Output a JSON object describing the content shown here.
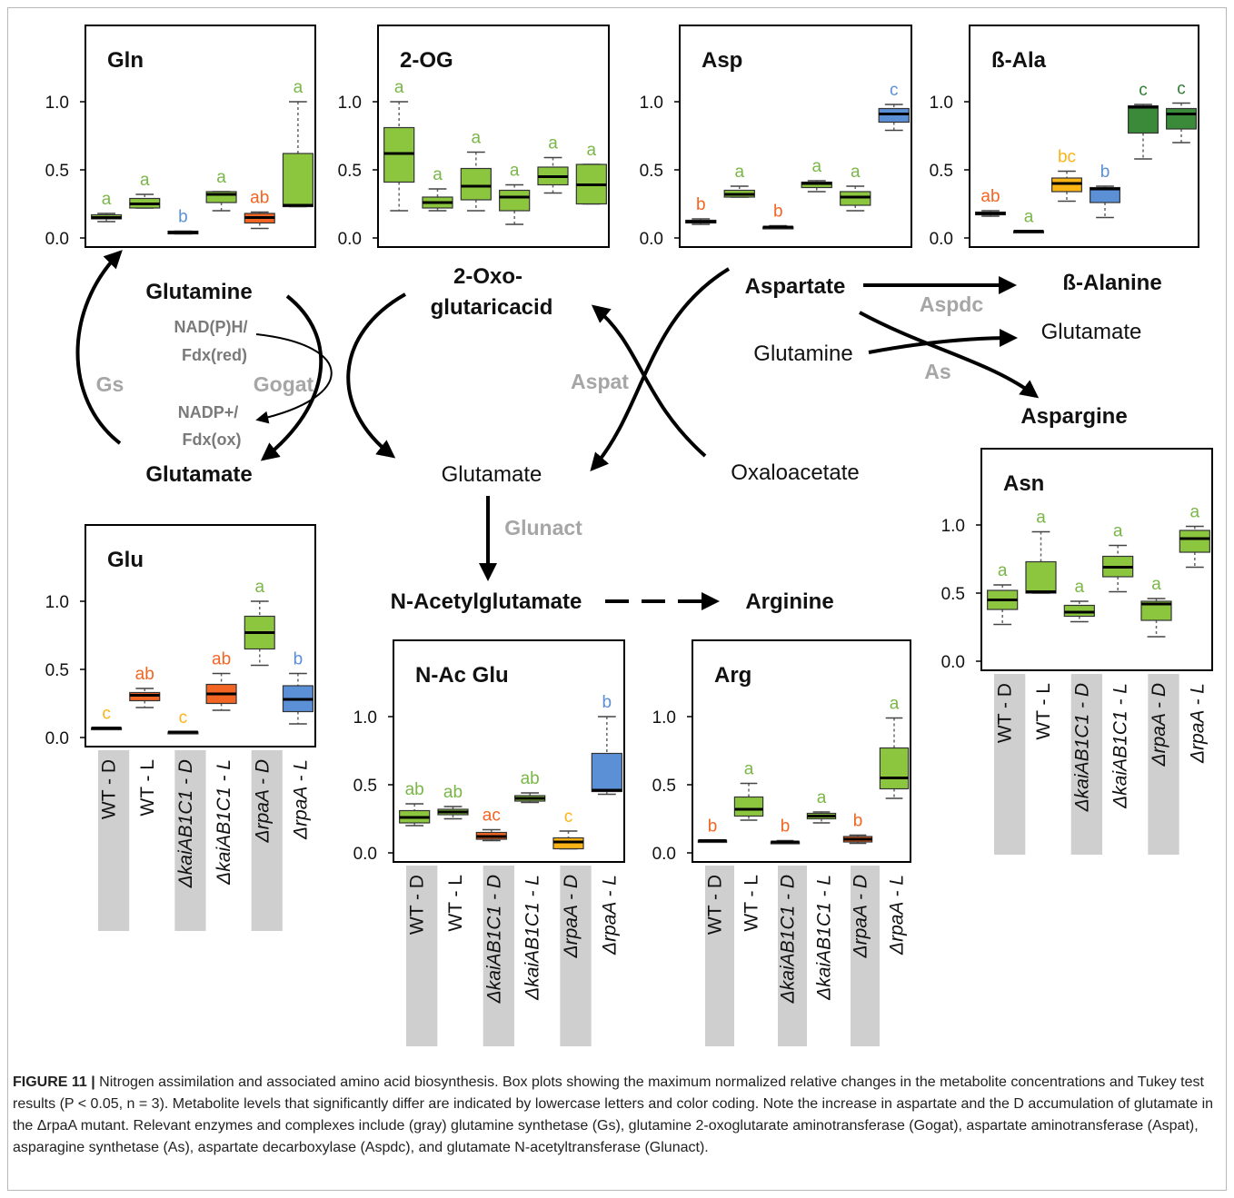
{
  "colors": {
    "green": "#8cc63f",
    "dark_green": "#3a8a3a",
    "orange": "#f26522",
    "yellow": "#fbb416",
    "blue": "#5b8fd6",
    "label_green": "#7ab648",
    "label_orange": "#f26522",
    "label_yellow": "#fbb416",
    "label_blue": "#5b8fd6",
    "label_dark_green": "#2e7d32",
    "enzyme_gray": "#a6a6a6",
    "cofactor_gray": "#7a7a7a",
    "shade": "#cfcfcf"
  },
  "categories": [
    "WT - D",
    "WT - L",
    "ΔkaiAB1C1 - D",
    "ΔkaiAB1C1 - L",
    "ΔrpaA - D",
    "ΔrpaA - L"
  ],
  "categories_italic": [
    false,
    false,
    true,
    true,
    true,
    true
  ],
  "tick_labels": [
    "0.0",
    "0.5",
    "1.0"
  ],
  "pathway": {
    "glutamine_left": "Glutamine",
    "glutamate_left": "Glutamate",
    "oxo_line1": "2-Oxo-",
    "oxo_line2": "glutaricacid",
    "glutamate_center": "Glutamate",
    "aspartate": "Aspartate",
    "beta_alanine": "ß-Alanine",
    "glutamate_right": "Glutamate",
    "glutamine_right": "Glutamine",
    "aspargine": "Aspargine",
    "oxaloacetate": "Oxaloacetate",
    "n_acetylglutamate": "N-Acetylglutamate",
    "arginine": "Arginine",
    "enzyme_gs": "Gs",
    "enzyme_gogat": "Gogat",
    "enzyme_aspat": "Aspat",
    "enzyme_aspdc": "Aspdc",
    "enzyme_as": "As",
    "enzyme_glunact": "Glunact",
    "cofactor_nadph": "NAD(P)H/",
    "cofactor_fdxred": "Fdx(red)",
    "cofactor_nadp": "NADP+/",
    "cofactor_fdxox": "Fdx(ox)"
  },
  "caption": {
    "label": "FIGURE 11 |",
    "text": " Nitrogen assimilation and associated amino acid biosynthesis. Box plots showing the maximum normalized relative changes in the metabolite concentrations and Tukey test results (P < 0.05, n = 3). Metabolite levels that significantly differ are indicated by lowercase letters and color coding. Note the increase in aspartate and the D accumulation of glutamate in the ΔrpaA mutant. Relevant enzymes and complexes include (gray) glutamine synthetase (Gs), glutamine 2-oxoglutarate aminotransferase (Gogat), aspartate aminotransferase (Aspat), asparagine synthetase (As), aspartate decarboxylase (Aspdc), and glutamate N-acetyltransferase (Glunact)."
  },
  "chart_data": [
    {
      "type": "box",
      "title": "Gln",
      "ylim": [
        0,
        1.3
      ],
      "boxes": [
        {
          "min": 0.12,
          "q1": 0.14,
          "median": 0.15,
          "q3": 0.17,
          "max": 0.18,
          "fill": "green",
          "letter": "a",
          "letter_color": "label_green"
        },
        {
          "min": 0.22,
          "q1": 0.22,
          "median": 0.25,
          "q3": 0.29,
          "max": 0.32,
          "fill": "green",
          "letter": "a",
          "letter_color": "label_green"
        },
        {
          "min": 0.03,
          "q1": 0.03,
          "median": 0.04,
          "q3": 0.05,
          "max": 0.05,
          "fill": "green",
          "letter": "b",
          "letter_color": "label_blue"
        },
        {
          "min": 0.2,
          "q1": 0.26,
          "median": 0.32,
          "q3": 0.34,
          "max": 0.34,
          "fill": "green",
          "letter": "a",
          "letter_color": "label_green"
        },
        {
          "min": 0.07,
          "q1": 0.11,
          "median": 0.15,
          "q3": 0.18,
          "max": 0.19,
          "fill": "orange",
          "letter": "ab",
          "letter_color": "label_orange"
        },
        {
          "min": 0.23,
          "q1": 0.23,
          "median": 0.24,
          "q3": 0.62,
          "max": 1.0,
          "fill": "green",
          "letter": "a",
          "letter_color": "label_green"
        }
      ]
    },
    {
      "type": "box",
      "title": "2-OG",
      "ylim": [
        0,
        1.3
      ],
      "boxes": [
        {
          "min": 0.2,
          "q1": 0.41,
          "median": 0.62,
          "q3": 0.81,
          "max": 1.0,
          "fill": "green",
          "letter": "a",
          "letter_color": "label_green"
        },
        {
          "min": 0.2,
          "q1": 0.22,
          "median": 0.26,
          "q3": 0.3,
          "max": 0.36,
          "fill": "green",
          "letter": "a",
          "letter_color": "label_green"
        },
        {
          "min": 0.2,
          "q1": 0.28,
          "median": 0.38,
          "q3": 0.51,
          "max": 0.63,
          "fill": "green",
          "letter": "a",
          "letter_color": "label_green"
        },
        {
          "min": 0.1,
          "q1": 0.2,
          "median": 0.3,
          "q3": 0.35,
          "max": 0.39,
          "fill": "green",
          "letter": "a",
          "letter_color": "label_green"
        },
        {
          "min": 0.33,
          "q1": 0.39,
          "median": 0.45,
          "q3": 0.52,
          "max": 0.59,
          "fill": "green",
          "letter": "a",
          "letter_color": "label_green"
        },
        {
          "min": 0.25,
          "q1": 0.25,
          "median": 0.39,
          "q3": 0.54,
          "max": 0.54,
          "fill": "green",
          "letter": "a",
          "letter_color": "label_green"
        }
      ]
    },
    {
      "type": "box",
      "title": "Asp",
      "ylim": [
        0,
        1.3
      ],
      "boxes": [
        {
          "min": 0.1,
          "q1": 0.11,
          "median": 0.12,
          "q3": 0.13,
          "max": 0.14,
          "fill": "orange",
          "letter": "b",
          "letter_color": "label_orange"
        },
        {
          "min": 0.3,
          "q1": 0.3,
          "median": 0.32,
          "q3": 0.35,
          "max": 0.38,
          "fill": "green",
          "letter": "a",
          "letter_color": "label_green"
        },
        {
          "min": 0.07,
          "q1": 0.07,
          "median": 0.08,
          "q3": 0.08,
          "max": 0.09,
          "fill": "orange",
          "letter": "b",
          "letter_color": "label_orange"
        },
        {
          "min": 0.34,
          "q1": 0.37,
          "median": 0.4,
          "q3": 0.41,
          "max": 0.42,
          "fill": "green",
          "letter": "a",
          "letter_color": "label_green"
        },
        {
          "min": 0.2,
          "q1": 0.24,
          "median": 0.3,
          "q3": 0.34,
          "max": 0.38,
          "fill": "green",
          "letter": "a",
          "letter_color": "label_green"
        },
        {
          "min": 0.79,
          "q1": 0.85,
          "median": 0.91,
          "q3": 0.95,
          "max": 0.98,
          "fill": "blue",
          "letter": "c",
          "letter_color": "label_blue"
        }
      ]
    },
    {
      "type": "box",
      "title": "ß-Ala",
      "ylim": [
        0,
        1.3
      ],
      "boxes": [
        {
          "min": 0.16,
          "q1": 0.17,
          "median": 0.18,
          "q3": 0.19,
          "max": 0.2,
          "fill": "orange",
          "letter": "ab",
          "letter_color": "label_orange"
        },
        {
          "min": 0.05,
          "q1": 0.05,
          "median": 0.05,
          "q3": 0.05,
          "max": 0.05,
          "fill": "green",
          "letter": "a",
          "letter_color": "label_green"
        },
        {
          "min": 0.27,
          "q1": 0.34,
          "median": 0.4,
          "q3": 0.44,
          "max": 0.49,
          "fill": "yellow",
          "letter": "bc",
          "letter_color": "label_yellow"
        },
        {
          "min": 0.15,
          "q1": 0.26,
          "median": 0.36,
          "q3": 0.37,
          "max": 0.38,
          "fill": "blue",
          "letter": "b",
          "letter_color": "label_blue"
        },
        {
          "min": 0.58,
          "q1": 0.77,
          "median": 0.96,
          "q3": 0.97,
          "max": 0.98,
          "fill": "dark_green",
          "letter": "c",
          "letter_color": "label_dark_green"
        },
        {
          "min": 0.7,
          "q1": 0.8,
          "median": 0.91,
          "q3": 0.95,
          "max": 0.99,
          "fill": "dark_green",
          "letter": "c",
          "letter_color": "label_dark_green"
        }
      ]
    },
    {
      "type": "box",
      "title": "Glu",
      "ylim": [
        0,
        1.3
      ],
      "boxes": [
        {
          "min": 0.07,
          "q1": 0.07,
          "median": 0.07,
          "q3": 0.07,
          "max": 0.07,
          "fill": "yellow",
          "letter": "c",
          "letter_color": "label_yellow"
        },
        {
          "min": 0.22,
          "q1": 0.27,
          "median": 0.31,
          "q3": 0.33,
          "max": 0.36,
          "fill": "orange",
          "letter": "ab",
          "letter_color": "label_orange"
        },
        {
          "min": 0.04,
          "q1": 0.04,
          "median": 0.04,
          "q3": 0.04,
          "max": 0.04,
          "fill": "yellow",
          "letter": "c",
          "letter_color": "label_yellow"
        },
        {
          "min": 0.2,
          "q1": 0.25,
          "median": 0.32,
          "q3": 0.39,
          "max": 0.47,
          "fill": "orange",
          "letter": "ab",
          "letter_color": "label_orange"
        },
        {
          "min": 0.53,
          "q1": 0.65,
          "median": 0.77,
          "q3": 0.89,
          "max": 1.0,
          "fill": "green",
          "letter": "a",
          "letter_color": "label_green"
        },
        {
          "min": 0.1,
          "q1": 0.19,
          "median": 0.28,
          "q3": 0.38,
          "max": 0.47,
          "fill": "blue",
          "letter": "b",
          "letter_color": "label_blue"
        }
      ]
    },
    {
      "type": "box",
      "title": "N-Ac Glu",
      "ylim": [
        0,
        1.3
      ],
      "boxes": [
        {
          "min": 0.2,
          "q1": 0.22,
          "median": 0.26,
          "q3": 0.31,
          "max": 0.36,
          "fill": "green",
          "letter": "ab",
          "letter_color": "label_green"
        },
        {
          "min": 0.25,
          "q1": 0.28,
          "median": 0.3,
          "q3": 0.32,
          "max": 0.34,
          "fill": "green",
          "letter": "ab",
          "letter_color": "label_green"
        },
        {
          "min": 0.09,
          "q1": 0.1,
          "median": 0.12,
          "q3": 0.15,
          "max": 0.17,
          "fill": "orange",
          "letter": "ac",
          "letter_color": "label_orange"
        },
        {
          "min": 0.37,
          "q1": 0.38,
          "median": 0.4,
          "q3": 0.42,
          "max": 0.44,
          "fill": "green",
          "letter": "ab",
          "letter_color": "label_green"
        },
        {
          "min": 0.03,
          "q1": 0.03,
          "median": 0.08,
          "q3": 0.11,
          "max": 0.16,
          "fill": "yellow",
          "letter": "c",
          "letter_color": "label_yellow"
        },
        {
          "min": 0.43,
          "q1": 0.45,
          "median": 0.46,
          "q3": 0.73,
          "max": 1.0,
          "fill": "blue",
          "letter": "b",
          "letter_color": "label_blue"
        }
      ]
    },
    {
      "type": "box",
      "title": "Arg",
      "ylim": [
        0,
        1.3
      ],
      "boxes": [
        {
          "min": 0.09,
          "q1": 0.09,
          "median": 0.09,
          "q3": 0.09,
          "max": 0.09,
          "fill": "green",
          "letter": "b",
          "letter_color": "label_orange"
        },
        {
          "min": 0.24,
          "q1": 0.27,
          "median": 0.32,
          "q3": 0.41,
          "max": 0.51,
          "fill": "green",
          "letter": "a",
          "letter_color": "label_green"
        },
        {
          "min": 0.07,
          "q1": 0.07,
          "median": 0.08,
          "q3": 0.08,
          "max": 0.09,
          "fill": "green",
          "letter": "b",
          "letter_color": "label_orange"
        },
        {
          "min": 0.22,
          "q1": 0.25,
          "median": 0.27,
          "q3": 0.29,
          "max": 0.3,
          "fill": "green",
          "letter": "a",
          "letter_color": "label_green"
        },
        {
          "min": 0.07,
          "q1": 0.08,
          "median": 0.1,
          "q3": 0.12,
          "max": 0.13,
          "fill": "orange",
          "letter": "b",
          "letter_color": "label_orange"
        },
        {
          "min": 0.4,
          "q1": 0.47,
          "median": 0.55,
          "q3": 0.77,
          "max": 0.99,
          "fill": "green",
          "letter": "a",
          "letter_color": "label_green"
        }
      ]
    },
    {
      "type": "box",
      "title": "Asn",
      "ylim": [
        0,
        1.3
      ],
      "boxes": [
        {
          "min": 0.27,
          "q1": 0.38,
          "median": 0.45,
          "q3": 0.52,
          "max": 0.56,
          "fill": "green",
          "letter": "a",
          "letter_color": "label_green"
        },
        {
          "min": 0.5,
          "q1": 0.5,
          "median": 0.51,
          "q3": 0.73,
          "max": 0.95,
          "fill": "green",
          "letter": "a",
          "letter_color": "label_green"
        },
        {
          "min": 0.29,
          "q1": 0.33,
          "median": 0.36,
          "q3": 0.41,
          "max": 0.44,
          "fill": "green",
          "letter": "a",
          "letter_color": "label_green"
        },
        {
          "min": 0.51,
          "q1": 0.62,
          "median": 0.69,
          "q3": 0.77,
          "max": 0.85,
          "fill": "green",
          "letter": "a",
          "letter_color": "label_green"
        },
        {
          "min": 0.18,
          "q1": 0.3,
          "median": 0.42,
          "q3": 0.44,
          "max": 0.46,
          "fill": "green",
          "letter": "a",
          "letter_color": "label_green"
        },
        {
          "min": 0.69,
          "q1": 0.8,
          "median": 0.9,
          "q3": 0.96,
          "max": 0.99,
          "fill": "green",
          "letter": "a",
          "letter_color": "label_green"
        }
      ]
    }
  ]
}
